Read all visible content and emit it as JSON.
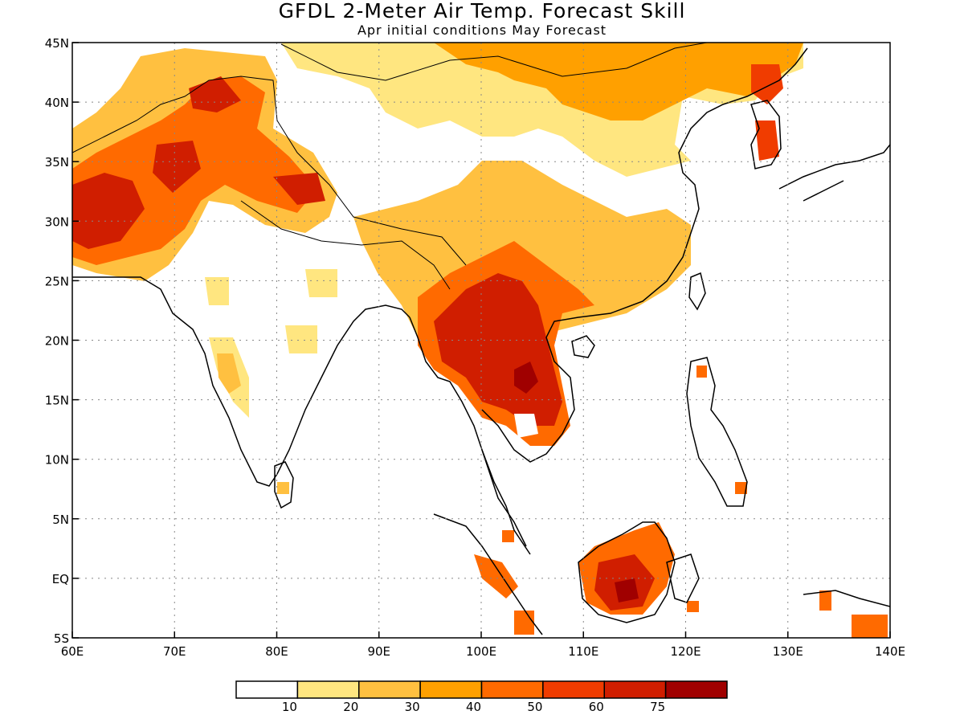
{
  "title": "GFDL 2-Meter Air Temp. Forecast Skill",
  "subtitle": "Apr initial conditions  May Forecast",
  "map": {
    "lon_range": [
      60,
      140
    ],
    "lat_range": [
      -5,
      45
    ],
    "grid": "dotted",
    "lon_labels": [
      "60E",
      "70E",
      "80E",
      "90E",
      "100E",
      "110E",
      "120E",
      "130E",
      "140E"
    ],
    "lat_labels": [
      "45N",
      "40N",
      "35N",
      "30N",
      "25N",
      "20N",
      "15N",
      "10N",
      "5N",
      "EQ",
      "5S"
    ]
  },
  "colorbar": {
    "colors": [
      "#ffffff",
      "#ffe680",
      "#ffc040",
      "#ffa000",
      "#ff6a00",
      "#f03c00",
      "#d01e00",
      "#a00000"
    ],
    "labels": [
      "10",
      "20",
      "30",
      "40",
      "50",
      "60",
      "75"
    ]
  }
}
